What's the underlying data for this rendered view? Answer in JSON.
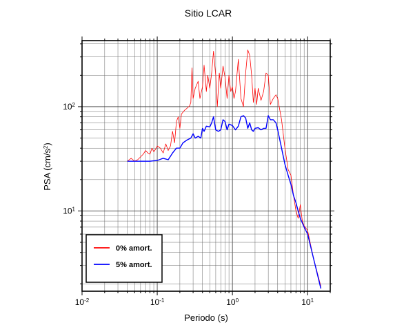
{
  "chart_data": {
    "type": "line",
    "title": "Sitio LCAR",
    "xlabel": "Periodo (s)",
    "ylabel_base": "PSA (cm/s",
    "ylabel_sup": "2",
    "ylabel_end": ")",
    "x_scale": "log",
    "y_scale": "log",
    "xlim": [
      0.01,
      20
    ],
    "ylim": [
      1.7,
      430
    ],
    "grid": true,
    "legend_position": "bottom-left",
    "x_ticks": [
      {
        "base": "10",
        "exp": "-2",
        "value": 0.01
      },
      {
        "base": "10",
        "exp": "-1",
        "value": 0.1
      },
      {
        "base": "10",
        "exp": "0",
        "value": 1
      },
      {
        "base": "10",
        "exp": "1",
        "value": 10
      }
    ],
    "y_ticks": [
      {
        "base": "10",
        "exp": "1",
        "value": 10
      },
      {
        "base": "10",
        "exp": "2",
        "value": 100
      }
    ],
    "series": [
      {
        "name": "0% amort.",
        "color": "#ff0000",
        "points": [
          [
            0.04,
            30
          ],
          [
            0.045,
            32
          ],
          [
            0.05,
            30
          ],
          [
            0.055,
            31
          ],
          [
            0.06,
            33
          ],
          [
            0.065,
            35
          ],
          [
            0.07,
            38
          ],
          [
            0.075,
            36
          ],
          [
            0.08,
            35
          ],
          [
            0.085,
            40
          ],
          [
            0.09,
            37
          ],
          [
            0.095,
            39
          ],
          [
            0.1,
            42
          ],
          [
            0.11,
            40
          ],
          [
            0.12,
            36
          ],
          [
            0.13,
            44
          ],
          [
            0.14,
            38
          ],
          [
            0.15,
            42
          ],
          [
            0.16,
            58
          ],
          [
            0.17,
            45
          ],
          [
            0.18,
            72
          ],
          [
            0.19,
            80
          ],
          [
            0.2,
            62
          ],
          [
            0.21,
            85
          ],
          [
            0.23,
            92
          ],
          [
            0.25,
            97
          ],
          [
            0.27,
            102
          ],
          [
            0.28,
            110
          ],
          [
            0.29,
            235
          ],
          [
            0.3,
            120
          ],
          [
            0.32,
            150
          ],
          [
            0.35,
            175
          ],
          [
            0.37,
            120
          ],
          [
            0.4,
            155
          ],
          [
            0.42,
            250
          ],
          [
            0.45,
            140
          ],
          [
            0.47,
            200
          ],
          [
            0.5,
            150
          ],
          [
            0.53,
            210
          ],
          [
            0.56,
            340
          ],
          [
            0.6,
            200
          ],
          [
            0.63,
            100
          ],
          [
            0.67,
            210
          ],
          [
            0.7,
            150
          ],
          [
            0.75,
            245
          ],
          [
            0.8,
            190
          ],
          [
            0.85,
            120
          ],
          [
            0.9,
            200
          ],
          [
            0.95,
            140
          ],
          [
            1.0,
            155
          ],
          [
            1.05,
            120
          ],
          [
            1.1,
            140
          ],
          [
            1.2,
            285
          ],
          [
            1.3,
            120
          ],
          [
            1.4,
            100
          ],
          [
            1.5,
            210
          ],
          [
            1.6,
            350
          ],
          [
            1.7,
            310
          ],
          [
            1.8,
            200
          ],
          [
            1.9,
            110
          ],
          [
            2.0,
            150
          ],
          [
            2.1,
            105
          ],
          [
            2.2,
            150
          ],
          [
            2.4,
            115
          ],
          [
            2.6,
            140
          ],
          [
            2.8,
            210
          ],
          [
            3.0,
            200
          ],
          [
            3.2,
            105
          ],
          [
            3.5,
            120
          ],
          [
            3.8,
            130
          ],
          [
            4.0,
            120
          ],
          [
            4.5,
            75
          ],
          [
            5.0,
            40
          ],
          [
            5.5,
            25
          ],
          [
            6.0,
            22
          ],
          [
            6.5,
            14
          ],
          [
            7.0,
            10
          ],
          [
            7.5,
            8.5
          ],
          [
            8.0,
            11.5
          ],
          [
            8.5,
            8
          ],
          [
            9.0,
            7.2
          ],
          [
            10.0,
            6.5
          ],
          [
            12.0,
            3.5
          ],
          [
            15.0,
            1.9
          ]
        ]
      },
      {
        "name": "5% amort.",
        "color": "#0000ff",
        "points": [
          [
            0.04,
            30
          ],
          [
            0.06,
            30
          ],
          [
            0.08,
            30
          ],
          [
            0.1,
            30.5
          ],
          [
            0.12,
            32
          ],
          [
            0.14,
            31
          ],
          [
            0.16,
            36
          ],
          [
            0.18,
            40
          ],
          [
            0.2,
            40
          ],
          [
            0.22,
            45
          ],
          [
            0.25,
            48
          ],
          [
            0.28,
            50
          ],
          [
            0.3,
            55
          ],
          [
            0.32,
            50
          ],
          [
            0.35,
            52
          ],
          [
            0.38,
            50
          ],
          [
            0.4,
            62
          ],
          [
            0.42,
            58
          ],
          [
            0.45,
            65
          ],
          [
            0.5,
            64
          ],
          [
            0.53,
            70
          ],
          [
            0.56,
            80
          ],
          [
            0.6,
            60
          ],
          [
            0.65,
            58
          ],
          [
            0.7,
            60
          ],
          [
            0.75,
            75
          ],
          [
            0.8,
            72
          ],
          [
            0.85,
            60
          ],
          [
            0.9,
            68
          ],
          [
            1.0,
            66
          ],
          [
            1.1,
            60
          ],
          [
            1.2,
            65
          ],
          [
            1.3,
            80
          ],
          [
            1.4,
            82
          ],
          [
            1.5,
            78
          ],
          [
            1.6,
            62
          ],
          [
            1.7,
            70
          ],
          [
            1.8,
            60
          ],
          [
            1.9,
            58
          ],
          [
            2.0,
            62
          ],
          [
            2.2,
            63
          ],
          [
            2.4,
            60
          ],
          [
            2.6,
            62
          ],
          [
            2.8,
            62
          ],
          [
            3.0,
            82
          ],
          [
            3.2,
            75
          ],
          [
            3.5,
            75
          ],
          [
            3.8,
            70
          ],
          [
            4.0,
            60
          ],
          [
            4.5,
            40
          ],
          [
            5.0,
            28
          ],
          [
            5.5,
            22
          ],
          [
            6.0,
            18
          ],
          [
            6.5,
            14
          ],
          [
            7.0,
            12
          ],
          [
            7.5,
            10
          ],
          [
            8.0,
            8.5
          ],
          [
            9.0,
            7
          ],
          [
            10.0,
            6
          ],
          [
            12.0,
            3.5
          ],
          [
            15.0,
            1.8
          ]
        ]
      }
    ]
  }
}
